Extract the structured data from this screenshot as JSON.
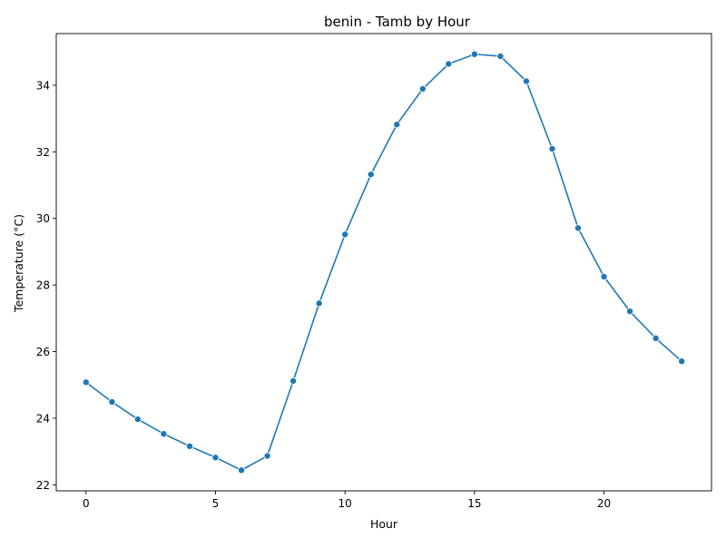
{
  "chart_data": {
    "type": "line",
    "title": "benin - Tamb by Hour",
    "xlabel": "Hour",
    "ylabel": "Temperature (°C)",
    "xlim": [
      -1.15,
      24.15
    ],
    "ylim": [
      21.82,
      35.55
    ],
    "xticks": [
      0,
      5,
      10,
      15,
      20
    ],
    "yticks": [
      22,
      24,
      26,
      28,
      30,
      32,
      34
    ],
    "grid": false,
    "legend": "none",
    "marker": "circle",
    "color": "#1f77b4",
    "series": [
      {
        "x": [
          0,
          1,
          2,
          3,
          4,
          5,
          6,
          7,
          8,
          9,
          10,
          11,
          12,
          13,
          14,
          15,
          16,
          17,
          18,
          19,
          20,
          21,
          22,
          23
        ],
        "values": [
          25.08,
          24.49,
          23.97,
          23.53,
          23.16,
          22.82,
          22.44,
          22.87,
          25.12,
          27.45,
          29.52,
          31.32,
          32.82,
          33.89,
          34.64,
          34.93,
          34.87,
          34.12,
          32.09,
          29.71,
          28.25,
          27.21,
          26.4,
          25.71
        ]
      }
    ]
  }
}
